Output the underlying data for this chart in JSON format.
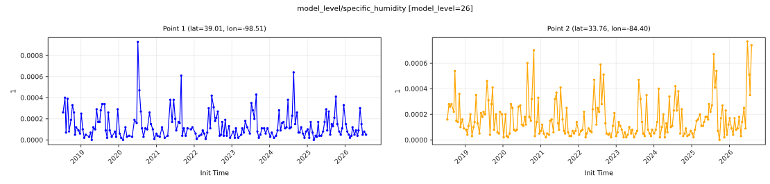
{
  "chart_data": [
    {
      "type": "line",
      "title": "Point 1 (lat=39.01, lon=-98.51)",
      "xlabel": "Init Time",
      "ylabel": "1",
      "annotations": [
        "model_level/specific_humidity [model_level=26]"
      ],
      "grid": true,
      "marker": "circle",
      "xlim": [
        "2018-02-17",
        "2026-12-15"
      ],
      "ylim": [
        -4.6e-05,
        0.00097
      ],
      "xticks": [
        {
          "value": "2019-01-01",
          "label": "2019"
        },
        {
          "value": "2020-01-01",
          "label": "2020"
        },
        {
          "value": "2021-01-01",
          "label": "2021"
        },
        {
          "value": "2022-01-01",
          "label": "2022"
        },
        {
          "value": "2023-01-01",
          "label": "2023"
        },
        {
          "value": "2024-01-01",
          "label": "2024"
        },
        {
          "value": "2025-01-01",
          "label": "2025"
        },
        {
          "value": "2026-01-01",
          "label": "2026"
        }
      ],
      "yticks": [
        {
          "value": 0,
          "label": "0.0000"
        },
        {
          "value": 0.0002,
          "label": "0.0002"
        },
        {
          "value": 0.0004,
          "label": "0.0004"
        },
        {
          "value": 0.0006,
          "label": "0.0006"
        },
        {
          "value": 0.0008,
          "label": "0.0008"
        }
      ],
      "x": [
        "2018-07-12",
        "2018-07-31",
        "2018-08-10",
        "2018-08-25",
        "2018-09-08",
        "2018-09-27",
        "2018-10-11",
        "2018-10-26",
        "2018-11-05",
        "2018-11-16",
        "2018-12-08",
        "2018-12-23",
        "2019-01-04",
        "2019-01-19",
        "2019-02-02",
        "2019-02-17",
        "2019-03-22",
        "2019-04-05",
        "2019-04-16",
        "2019-05-01",
        "2019-05-19",
        "2019-06-02",
        "2019-06-17",
        "2019-07-02",
        "2019-07-12",
        "2019-07-27",
        "2019-08-18",
        "2019-08-29",
        "2019-09-12",
        "2019-09-23",
        "2019-10-07",
        "2019-10-26",
        "2019-11-27",
        "2019-12-08",
        "2019-12-23",
        "2020-01-11",
        "2020-01-26",
        "2020-02-13",
        "2020-03-07",
        "2020-03-22",
        "2020-04-12",
        "2020-05-11",
        "2020-06-02",
        "2020-06-24",
        "2020-07-05",
        "2020-07-20",
        "2020-08-03",
        "2020-08-14",
        "2020-08-29",
        "2020-09-16",
        "2020-10-04",
        "2020-10-26",
        "2020-11-09",
        "2020-11-27",
        "2020-12-12",
        "2021-01-01",
        "2021-01-11",
        "2021-02-02",
        "2021-02-24",
        "2021-03-22",
        "2021-04-20",
        "2021-05-15",
        "2021-06-02",
        "2021-06-17",
        "2021-07-02",
        "2021-07-12",
        "2021-08-03",
        "2021-08-14",
        "2021-08-29",
        "2021-09-08",
        "2021-09-23",
        "2021-10-11",
        "2021-10-29",
        "2021-12-01",
        "2021-12-15",
        "2022-01-15",
        "2022-01-26",
        "2022-02-20",
        "2022-03-11",
        "2022-03-25",
        "2022-04-09",
        "2022-04-23",
        "2022-05-08",
        "2022-05-22",
        "2022-06-06",
        "2022-06-20",
        "2022-07-09",
        "2022-07-23",
        "2022-08-03",
        "2022-08-18",
        "2022-09-05",
        "2022-09-19",
        "2022-09-30",
        "2022-10-15",
        "2022-10-29",
        "2022-11-13",
        "2022-12-04",
        "2022-12-15",
        "2023-01-15",
        "2023-01-30",
        "2023-02-09",
        "2023-03-04",
        "2023-04-02",
        "2023-04-12",
        "2023-04-27",
        "2023-05-11",
        "2023-05-30",
        "2023-06-24",
        "2023-07-09",
        "2023-07-23",
        "2023-08-07",
        "2023-08-25",
        "2023-09-05",
        "2023-09-19",
        "2023-10-04",
        "2023-10-18",
        "2023-11-09",
        "2023-11-24",
        "2023-12-12",
        "2024-01-08",
        "2024-01-22",
        "2024-02-13",
        "2024-03-04",
        "2024-03-18",
        "2024-04-02",
        "2024-04-16",
        "2024-05-01",
        "2024-05-15",
        "2024-05-30",
        "2024-06-13",
        "2024-06-27",
        "2024-07-12",
        "2024-07-27",
        "2024-08-07",
        "2024-08-21",
        "2024-09-05",
        "2024-09-23",
        "2024-10-07",
        "2024-10-18",
        "2024-11-02",
        "2024-11-20",
        "2024-12-04",
        "2024-12-19",
        "2025-01-04",
        "2025-01-19",
        "2025-02-02",
        "2025-02-20",
        "2025-03-04",
        "2025-03-22",
        "2025-04-02",
        "2025-04-16",
        "2025-04-27",
        "2025-05-15",
        "2025-06-02",
        "2025-06-17",
        "2025-07-02",
        "2025-07-12",
        "2025-07-27",
        "2025-08-10",
        "2025-08-25",
        "2025-09-05",
        "2025-09-19",
        "2025-10-04",
        "2025-10-18",
        "2025-11-05",
        "2025-11-20",
        "2025-12-04",
        "2025-12-19",
        "2026-01-08",
        "2026-01-22",
        "2026-02-06",
        "2026-02-17",
        "2026-03-04",
        "2026-03-14",
        "2026-04-02",
        "2026-04-16",
        "2026-05-01",
        "2026-05-11",
        "2026-05-26",
        "2026-06-09",
        "2026-06-20",
        "2026-07-05",
        "2026-07-23"
      ],
      "series": [
        {
          "color": "#0000ff",
          "values": [
            0.00026,
            0.0004,
            7e-05,
            0.00039,
            8e-05,
            0.00019,
            0.00033,
            0.00026,
            5e-05,
            0.00012,
            9e-05,
            6e-05,
            0.00025,
            0.0001,
            2e-05,
            5e-05,
            3e-05,
            7e-05,
            0.0,
            0.00012,
            0.0001,
            0.00029,
            0.00017,
            0.00017,
            0.00028,
            0.00034,
            0.00034,
            9e-05,
            2e-05,
            0.00026,
            9e-05,
            3e-05,
            8e-05,
            3e-05,
            0.00029,
            6e-05,
            2e-05,
            0.0,
            0.00012,
            3e-05,
            4e-05,
            3e-05,
            0.00019,
            0.00016,
            0.00093,
            0.00047,
            0.00027,
            0.00011,
            3e-05,
            0.00011,
            0.0001,
            0.00026,
            0.00015,
            0.0001,
            1e-05,
            6e-05,
            4e-05,
            3e-05,
            0.00012,
            2e-05,
            4e-05,
            0.00038,
            0.00017,
            0.00038,
            0.0002,
            9e-05,
            0.00017,
            0.00016,
            0.00061,
            4e-05,
            0.00011,
            4e-05,
            0.00011,
            0.0001,
            0.00012,
            6e-05,
            1e-05,
            4e-05,
            5e-05,
            9e-05,
            6e-05,
            1e-05,
            7e-05,
            0.0003,
            0.00011,
            0.00042,
            0.00031,
            0.00018,
            0.00021,
            0.00027,
            4e-05,
            5e-05,
            0.00017,
            4e-05,
            0.00019,
            4e-05,
            0.00013,
            2e-05,
            8e-05,
            2e-05,
            0.00011,
            2e-05,
            5e-05,
            0.00011,
            7e-05,
            0.00018,
            0.00012,
            6e-05,
            0.00035,
            0.00028,
            0.0002,
            0.00043,
            8e-05,
            2e-05,
            5e-05,
            0.00011,
            0.00011,
            6e-05,
            0.00011,
            3e-05,
            7e-05,
            2e-05,
            4e-05,
            9e-05,
            0.00028,
            9e-05,
            0.00016,
            0.00017,
            0.00011,
            0.00012,
            0.00038,
            0.00011,
            0.00012,
            0.00023,
            0.00064,
            0.00015,
            0.00026,
            7e-05,
            7e-05,
            0.00012,
            6e-05,
            2e-05,
            8e-05,
            0.0001,
            2e-05,
            0.00017,
            7e-05,
            0.0,
            4e-05,
            3e-05,
            0.00017,
            4e-05,
            4e-05,
            8e-05,
            0.00017,
            0.00029,
            9e-05,
            0.00027,
            5e-05,
            0.00015,
            0.00013,
            0.00021,
            0.00041,
            0.00015,
            8e-05,
            5e-05,
            0.00011,
            0.00033,
            0.00015,
            8e-05,
            5e-05,
            2e-05,
            4e-05,
            0.00012,
            5e-05,
            9e-05,
            4e-05,
            9e-05,
            0.0003,
            0.00015,
            5e-05,
            8e-05,
            5e-05
          ]
        }
      ]
    },
    {
      "type": "line",
      "title": "Point 2 (lat=33.76, lon=-84.40)",
      "xlabel": "Init Time",
      "ylabel": "1",
      "grid": true,
      "marker": "circle",
      "xlim": [
        "2018-02-17",
        "2026-12-15"
      ],
      "ylim": [
        -3.8e-05,
        0.0008
      ],
      "xticks": [
        {
          "value": "2019-01-01",
          "label": "2019"
        },
        {
          "value": "2020-01-01",
          "label": "2020"
        },
        {
          "value": "2021-01-01",
          "label": "2021"
        },
        {
          "value": "2022-01-01",
          "label": "2022"
        },
        {
          "value": "2023-01-01",
          "label": "2023"
        },
        {
          "value": "2024-01-01",
          "label": "2024"
        },
        {
          "value": "2025-01-01",
          "label": "2025"
        },
        {
          "value": "2026-01-01",
          "label": "2026"
        }
      ],
      "yticks": [
        {
          "value": 0,
          "label": "0.0000"
        },
        {
          "value": 0.0002,
          "label": "0.0002"
        },
        {
          "value": 0.0004,
          "label": "0.0004"
        },
        {
          "value": 0.0006,
          "label": "0.0006"
        }
      ],
      "x": [
        "2018-07-12",
        "2018-07-27",
        "2018-08-07",
        "2018-08-21",
        "2018-09-12",
        "2018-09-23",
        "2018-10-07",
        "2018-10-22",
        "2018-11-05",
        "2018-11-16",
        "2018-12-04",
        "2018-12-19",
        "2019-01-11",
        "2019-01-22",
        "2019-02-02",
        "2019-02-20",
        "2019-03-07",
        "2019-03-22",
        "2019-04-02",
        "2019-04-16",
        "2019-05-01",
        "2019-05-19",
        "2019-06-02",
        "2019-06-17",
        "2019-06-27",
        "2019-07-12",
        "2019-07-31",
        "2019-08-14",
        "2019-08-29",
        "2019-09-12",
        "2019-09-23",
        "2019-10-07",
        "2019-10-26",
        "2019-11-09",
        "2019-11-24",
        "2019-12-04",
        "2019-12-23",
        "2020-01-08",
        "2020-01-26",
        "2020-02-06",
        "2020-02-20",
        "2020-03-07",
        "2020-03-18",
        "2020-04-02",
        "2020-04-16",
        "2020-05-01",
        "2020-05-15",
        "2020-05-30",
        "2020-06-17",
        "2020-07-02",
        "2020-07-16",
        "2020-07-31",
        "2020-08-10",
        "2020-08-25",
        "2020-09-12",
        "2020-09-27",
        "2020-10-07",
        "2020-10-26",
        "2020-11-05",
        "2020-11-24",
        "2020-12-08",
        "2020-12-19",
        "2021-01-04",
        "2021-01-15",
        "2021-01-30",
        "2021-02-20",
        "2021-03-04",
        "2021-03-22",
        "2021-04-02",
        "2021-04-16",
        "2021-05-04",
        "2021-05-19",
        "2021-06-02",
        "2021-06-17",
        "2021-06-27",
        "2021-07-12",
        "2021-07-31",
        "2021-08-14",
        "2021-08-25",
        "2021-09-08",
        "2021-09-23",
        "2021-10-07",
        "2021-10-22",
        "2021-11-05",
        "2021-11-20",
        "2021-12-04",
        "2021-12-15",
        "2022-01-08",
        "2022-01-26",
        "2022-02-09",
        "2022-02-24",
        "2022-03-11",
        "2022-03-22",
        "2022-04-09",
        "2022-04-23",
        "2022-05-08",
        "2022-05-19",
        "2022-06-02",
        "2022-06-24",
        "2022-07-05",
        "2022-07-20",
        "2022-08-03",
        "2022-08-14",
        "2022-09-01",
        "2022-09-19",
        "2022-09-30",
        "2022-10-18",
        "2022-10-29",
        "2022-11-13",
        "2022-12-01",
        "2022-12-15",
        "2023-01-01",
        "2023-01-15",
        "2023-01-26",
        "2023-02-09",
        "2023-02-24",
        "2023-03-14",
        "2023-03-25",
        "2023-04-09",
        "2023-04-23",
        "2023-05-08",
        "2023-05-26",
        "2023-06-06",
        "2023-06-24",
        "2023-07-09",
        "2023-07-23",
        "2023-08-07",
        "2023-08-25",
        "2023-09-08",
        "2023-09-19",
        "2023-10-04",
        "2023-10-22",
        "2023-11-05",
        "2023-11-20",
        "2023-12-04",
        "2023-12-15",
        "2024-01-04",
        "2024-01-19",
        "2024-02-02",
        "2024-02-17",
        "2024-02-28",
        "2024-03-18",
        "2024-04-02",
        "2024-04-16",
        "2024-05-01",
        "2024-05-11",
        "2024-05-30",
        "2024-06-13",
        "2024-06-27",
        "2024-07-12",
        "2024-07-27",
        "2024-08-10",
        "2024-08-25",
        "2024-09-12",
        "2024-09-27",
        "2024-10-11",
        "2024-10-26",
        "2024-11-05",
        "2024-11-20",
        "2024-12-08",
        "2024-12-23",
        "2025-01-08",
        "2025-01-19",
        "2025-02-02",
        "2025-02-17",
        "2025-03-04",
        "2025-03-22",
        "2025-04-05",
        "2025-04-20",
        "2025-05-01",
        "2025-05-15",
        "2025-05-30",
        "2025-06-09",
        "2025-06-17",
        "2025-07-02",
        "2025-07-16",
        "2025-08-03",
        "2025-08-14",
        "2025-08-29",
        "2025-09-12",
        "2025-09-27",
        "2025-10-11",
        "2025-10-26",
        "2025-11-13",
        "2025-11-27",
        "2025-12-08",
        "2025-12-23",
        "2026-01-04",
        "2026-01-22",
        "2026-02-06",
        "2026-02-20",
        "2026-03-07",
        "2026-03-22",
        "2026-04-05",
        "2026-04-23",
        "2026-05-04",
        "2026-05-22",
        "2026-06-06",
        "2026-06-24",
        "2026-07-12",
        "2026-07-20",
        "2026-08-03"
      ],
      "series": [
        {
          "color": "#ffa500",
          "values": [
            0.00016,
            0.00028,
            0.00026,
            0.00028,
            0.00022,
            0.00054,
            0.00015,
            0.00014,
            0.00036,
            0.0001,
            0.00016,
            9e-05,
            8e-05,
            4e-05,
            0.00011,
            0.0002,
            3e-05,
            0.0001,
            0.00014,
            0.00035,
            0.00013,
            5e-05,
            0.00021,
            0.00018,
            0.00022,
            0.0002,
            0.00046,
            0.00031,
            4e-05,
            0.00028,
            0.00041,
            8e-05,
            0.0002,
            6e-05,
            5e-05,
            0.00022,
            0.0002,
            2e-05,
            0.0002,
            3e-05,
            2e-05,
            5e-05,
            0.00028,
            0.00025,
            8e-05,
            7e-05,
            8e-05,
            0.00026,
            0.00027,
            0.00012,
            0.00011,
            0.00018,
            0.00012,
            0.0006,
            0.00018,
            0.00015,
            0.00032,
            0.0007,
            3e-05,
            0.00014,
            0.00033,
            5e-05,
            7e-05,
            0.00012,
            5e-05,
            2e-05,
            5e-05,
            4e-05,
            0.00015,
            0.00016,
            6e-05,
            0.00032,
            0.00037,
            0.00013,
            8e-05,
            0.00041,
            0.00016,
            7e-05,
            5e-05,
            0.00025,
            6e-05,
            3e-05,
            3e-05,
            7e-05,
            5e-05,
            7e-05,
            0.00014,
            4e-05,
            7e-05,
            8e-05,
            0.00022,
            2e-05,
            5e-05,
            9e-05,
            7e-05,
            6e-05,
            0.00024,
            0.00047,
            0.00012,
            0.00025,
            0.00022,
            0.00059,
            0.00028,
            0.00051,
            0.00013,
            5e-05,
            4e-05,
            5e-05,
            2e-05,
            0.00011,
            0.00021,
            3e-05,
            6e-05,
            0.00014,
            0.00011,
            8e-05,
            2e-05,
            6e-05,
            2e-05,
            4e-05,
            0.0001,
            5e-05,
            8e-05,
            2e-05,
            5e-05,
            7e-05,
            0.00047,
            0.00032,
            0.00014,
            5e-05,
            3e-05,
            0.00035,
            8e-05,
            5e-05,
            3e-05,
            8e-05,
            5e-05,
            8e-05,
            0.00014,
            0.0004,
            2e-05,
            0.0001,
            0.0002,
            2e-05,
            0.00013,
            6e-05,
            0.00034,
            0.0001,
            0.00011,
            0.00023,
            0.00042,
            0.00023,
            0.00038,
            5e-05,
            0.00024,
            3e-05,
            5e-05,
            9e-05,
            3e-05,
            4e-05,
            7e-05,
            5e-05,
            2e-05,
            8e-05,
            0.00015,
            0.00016,
            0.0002,
            0.00011,
            0.00011,
            0.00014,
            0.00018,
            0.00018,
            0.00016,
            0.00028,
            0.00022,
            0.00027,
            0.00067,
            0.00041,
            0.00054,
            7e-05,
            0.0,
            0.00017,
            0.00027,
            2e-05,
            0.00023,
            4e-05,
            0.00012,
            0.00017,
            9e-05,
            4e-05,
            0.00017,
            8e-05,
            9e-05,
            0.00018,
            3e-05,
            0.00014,
            0.00025,
            9e-05,
            0.00077,
            0.00051,
            0.00035,
            0.00074
          ]
        }
      ]
    }
  ]
}
